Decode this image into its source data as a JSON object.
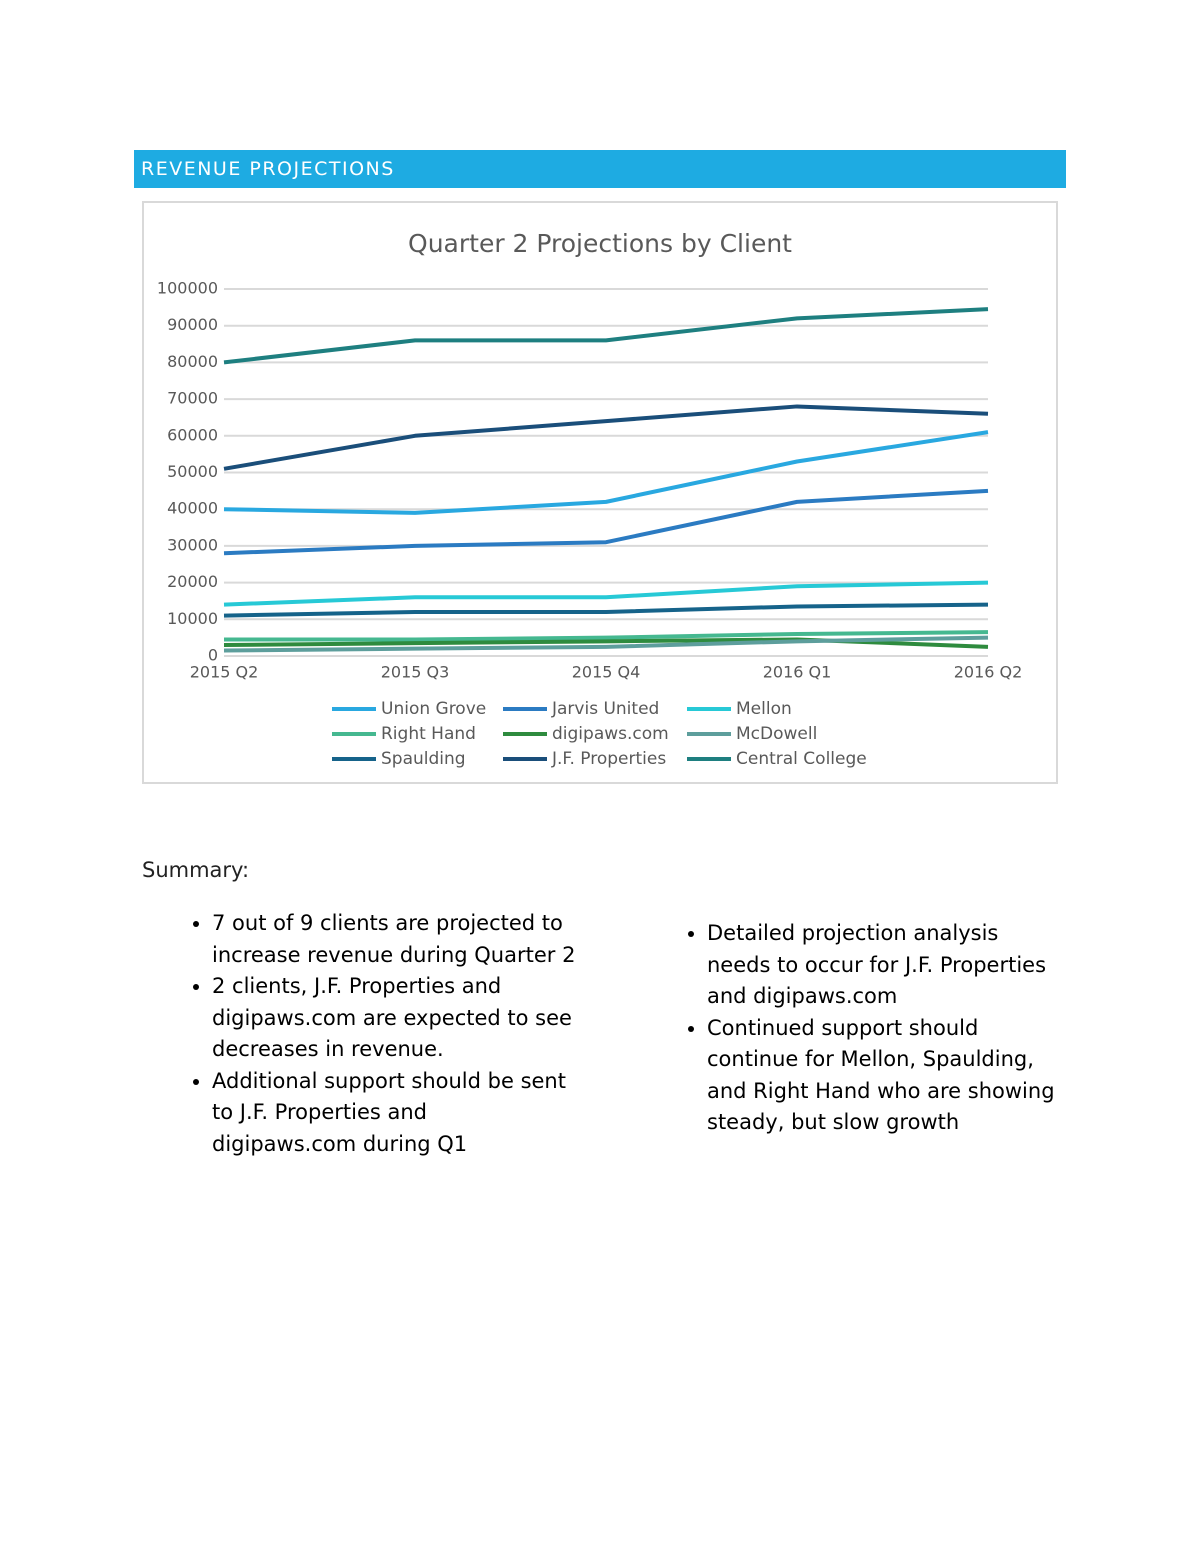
{
  "header": {
    "title": "REVENUE PROJECTIONS"
  },
  "chart_data": {
    "type": "line",
    "title": "Quarter 2 Projections by Client",
    "categories": [
      "2015 Q2",
      "2015 Q3",
      "2015 Q4",
      "2016 Q1",
      "2016 Q2"
    ],
    "ylim": [
      0,
      100000
    ],
    "yticks": [
      0,
      10000,
      20000,
      30000,
      40000,
      50000,
      60000,
      70000,
      80000,
      90000,
      100000
    ],
    "grid": true,
    "legend": "bottom",
    "series": [
      {
        "name": "Union Grove",
        "color": "#29a8e0",
        "values": [
          40000,
          39000,
          42000,
          53000,
          61000
        ]
      },
      {
        "name": "Jarvis United",
        "color": "#2b7bc2",
        "values": [
          28000,
          30000,
          31000,
          42000,
          45000
        ]
      },
      {
        "name": "Mellon",
        "color": "#27c9d6",
        "values": [
          14000,
          16000,
          16000,
          19000,
          20000
        ]
      },
      {
        "name": "Right Hand",
        "color": "#45b890",
        "values": [
          4500,
          4500,
          5000,
          6000,
          6500
        ]
      },
      {
        "name": "digipaws.com",
        "color": "#2e8b3e",
        "values": [
          3000,
          3500,
          4000,
          4500,
          2500
        ]
      },
      {
        "name": "McDowell",
        "color": "#5d9e9c",
        "values": [
          1500,
          2000,
          2500,
          4000,
          5000
        ]
      },
      {
        "name": "Spaulding",
        "color": "#16638a",
        "values": [
          11000,
          12000,
          12000,
          13500,
          14000
        ]
      },
      {
        "name": "J.F. Properties",
        "color": "#1a4e7a",
        "values": [
          51000,
          60000,
          64000,
          68000,
          66000
        ]
      },
      {
        "name": "Central College",
        "color": "#1e7f80",
        "values": [
          80000,
          86000,
          86000,
          92000,
          94500
        ]
      }
    ]
  },
  "summary": {
    "heading": "Summary:",
    "left": [
      "7 out of 9 clients are projected to increase revenue during Quarter 2",
      "2 clients, J.F. Properties and digipaws.com are expected to see decreases in revenue.",
      "Additional support should be sent to J.F. Properties and digipaws.com during Q1"
    ],
    "right": [
      "Detailed projection analysis needs to occur for J.F. Properties and digipaws.com",
      "Continued support should continue for Mellon, Spaulding, and Right Hand who are showing steady, but slow growth"
    ]
  }
}
